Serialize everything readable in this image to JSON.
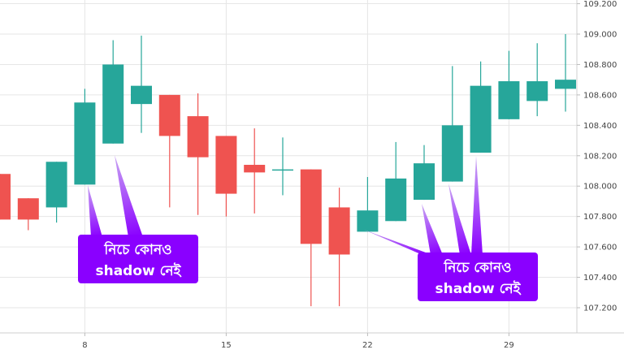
{
  "chart_data": {
    "type": "candlestick",
    "title": "",
    "xlabel": "",
    "ylabel": "",
    "ylim": [
      107.09,
      109.25
    ],
    "yticks": [
      "107.200",
      "107.400",
      "107.600",
      "107.800",
      "108.000",
      "108.200",
      "108.400",
      "108.600",
      "108.800",
      "109.000",
      "109.200"
    ],
    "xticks": [
      {
        "label": "8",
        "index": 3
      },
      {
        "label": "15",
        "index": 8
      },
      {
        "label": "22",
        "index": 13
      },
      {
        "label": "29",
        "index": 18
      }
    ],
    "colors": {
      "up": "#26a69a",
      "down": "#ef5350",
      "grid": "#e6e6e6",
      "callout": "#8a00ff"
    },
    "candles": [
      {
        "open": 108.08,
        "high": 108.08,
        "low": 107.78,
        "close": 107.78
      },
      {
        "open": 107.92,
        "high": 107.92,
        "low": 107.71,
        "close": 107.78
      },
      {
        "open": 107.86,
        "high": 108.16,
        "low": 107.76,
        "close": 108.16
      },
      {
        "open": 108.01,
        "high": 108.64,
        "low": 108.01,
        "close": 108.55
      },
      {
        "open": 108.28,
        "high": 108.96,
        "low": 108.28,
        "close": 108.8
      },
      {
        "open": 108.54,
        "high": 108.99,
        "low": 108.35,
        "close": 108.66
      },
      {
        "open": 108.6,
        "high": 108.6,
        "low": 107.86,
        "close": 108.33
      },
      {
        "open": 108.46,
        "high": 108.61,
        "low": 107.81,
        "close": 108.19
      },
      {
        "open": 108.33,
        "high": 108.33,
        "low": 107.8,
        "close": 107.95
      },
      {
        "open": 108.14,
        "high": 108.38,
        "low": 107.82,
        "close": 108.09
      },
      {
        "open": 108.11,
        "high": 108.32,
        "low": 107.94,
        "close": 108.11
      },
      {
        "open": 108.11,
        "high": 108.11,
        "low": 107.21,
        "close": 107.62
      },
      {
        "open": 107.86,
        "high": 107.99,
        "low": 107.21,
        "close": 107.55
      },
      {
        "open": 107.7,
        "high": 108.06,
        "low": 107.7,
        "close": 107.84
      },
      {
        "open": 107.77,
        "high": 108.29,
        "low": 107.77,
        "close": 108.05
      },
      {
        "open": 107.91,
        "high": 108.27,
        "low": 107.91,
        "close": 108.15
      },
      {
        "open": 108.03,
        "high": 108.79,
        "low": 108.03,
        "close": 108.4
      },
      {
        "open": 108.22,
        "high": 108.82,
        "low": 108.22,
        "close": 108.66
      },
      {
        "open": 108.44,
        "high": 108.89,
        "low": 108.44,
        "close": 108.69
      },
      {
        "open": 108.56,
        "high": 108.94,
        "low": 108.46,
        "close": 108.69
      },
      {
        "open": 108.64,
        "high": 109.0,
        "low": 108.49,
        "close": 108.7
      }
    ]
  },
  "callouts": [
    {
      "line1": "নিচে কোনও",
      "line2": "shadow নেই"
    },
    {
      "line1": "নিচে কোনও",
      "line2": "shadow নেই"
    }
  ]
}
